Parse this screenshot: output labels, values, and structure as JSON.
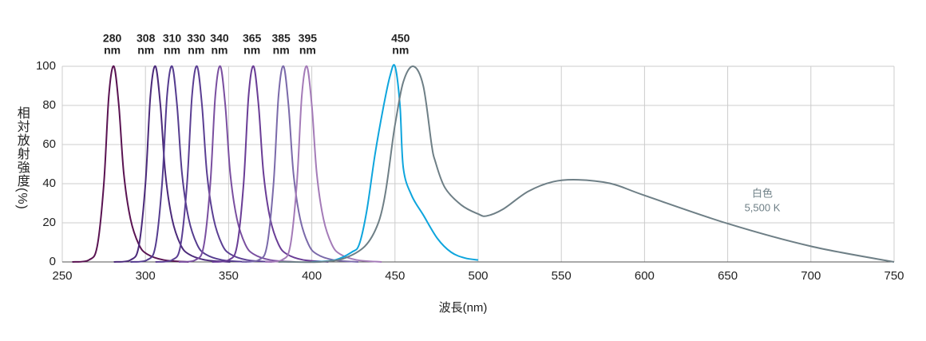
{
  "chart_data": {
    "type": "line",
    "xlabel": "波長(nm)",
    "ylabel": "相対放射強度(%)",
    "unit": "nm",
    "xlim": [
      250,
      750
    ],
    "xticks": [
      250,
      300,
      350,
      400,
      450,
      500,
      550,
      600,
      650,
      700,
      750
    ],
    "ylim": [
      0,
      100
    ],
    "yticks": [
      0,
      20,
      40,
      60,
      80,
      100
    ],
    "grid": true,
    "annotations": [
      "白色",
      "5,500 K"
    ],
    "series": [
      {
        "name": "280",
        "color": "#5a1352",
        "x": [
          256,
          266,
          271,
          275,
          278,
          281,
          284,
          287,
          291,
          296,
          301,
          311,
          326
        ],
        "values": [
          0,
          1,
          8,
          40,
          85,
          100,
          80,
          45,
          22,
          9,
          4,
          1,
          0
        ]
      },
      {
        "name": "308",
        "color": "#4b2a7a",
        "x": [
          281,
          291,
          296,
          300,
          303,
          306,
          309,
          312,
          316,
          321,
          326,
          336,
          351
        ],
        "values": [
          0,
          1,
          8,
          40,
          85,
          100,
          80,
          45,
          22,
          9,
          4,
          1,
          0
        ]
      },
      {
        "name": "310",
        "color": "#553c8f",
        "x": [
          291,
          301,
          306,
          310,
          313,
          316,
          319,
          322,
          326,
          331,
          336,
          346,
          361
        ],
        "values": [
          0,
          1,
          8,
          40,
          85,
          100,
          80,
          45,
          22,
          9,
          4,
          1,
          0
        ]
      },
      {
        "name": "330",
        "color": "#5b3f93",
        "x": [
          306,
          316,
          321,
          325,
          328,
          331,
          334,
          337,
          341,
          346,
          351,
          361,
          376
        ],
        "values": [
          0,
          1,
          8,
          40,
          85,
          100,
          80,
          45,
          22,
          9,
          4,
          1,
          0
        ]
      },
      {
        "name": "340",
        "color": "#7a4fa0",
        "x": [
          320,
          330,
          335,
          339,
          342,
          345,
          348,
          351,
          355,
          360,
          365,
          375,
          390
        ],
        "values": [
          0,
          1,
          8,
          40,
          85,
          100,
          80,
          45,
          22,
          9,
          4,
          1,
          0
        ]
      },
      {
        "name": "365",
        "color": "#6a3d96",
        "x": [
          340,
          350,
          355,
          359,
          362,
          365,
          368,
          371,
          375,
          380,
          385,
          395,
          410
        ],
        "values": [
          0,
          1,
          8,
          40,
          85,
          100,
          80,
          45,
          22,
          9,
          4,
          1,
          0
        ]
      },
      {
        "name": "385",
        "color": "#7b6aaa",
        "x": [
          358,
          368,
          373,
          377,
          380,
          383,
          386,
          389,
          393,
          398,
          403,
          413,
          428
        ],
        "values": [
          0,
          1,
          8,
          40,
          85,
          100,
          80,
          45,
          22,
          9,
          4,
          1,
          0
        ]
      },
      {
        "name": "395",
        "color": "#a47bb8",
        "x": [
          372,
          382,
          387,
          391,
          394,
          397,
          400,
          403,
          407,
          412,
          417,
          427,
          442
        ],
        "values": [
          0,
          1,
          8,
          40,
          85,
          100,
          80,
          45,
          22,
          9,
          4,
          1,
          0
        ]
      },
      {
        "name": "450",
        "color": "#0ea5dd",
        "x": [
          400,
          414,
          424,
          428.5,
          433,
          438,
          443,
          447,
          450,
          453,
          455,
          460,
          467,
          475.5,
          483.7,
          492,
          500
        ],
        "values": [
          0,
          1,
          5,
          9,
          26,
          55,
          79,
          95,
          100,
          80,
          48,
          34,
          24,
          12,
          5,
          2,
          1
        ]
      },
      {
        "name": "白色 5,500 K",
        "color": "#6e7f86",
        "x": [
          380,
          420,
          440,
          450,
          455,
          461,
          467,
          472,
          474,
          480,
          490,
          500,
          505,
          515,
          530,
          545,
          560,
          580,
          600,
          650,
          700,
          750
        ],
        "values": [
          0,
          2,
          20,
          70,
          92,
          100,
          90,
          60,
          52,
          38,
          29,
          24.5,
          23.5,
          27,
          36,
          41,
          42,
          40,
          34,
          19.6,
          8,
          0
        ]
      }
    ]
  }
}
